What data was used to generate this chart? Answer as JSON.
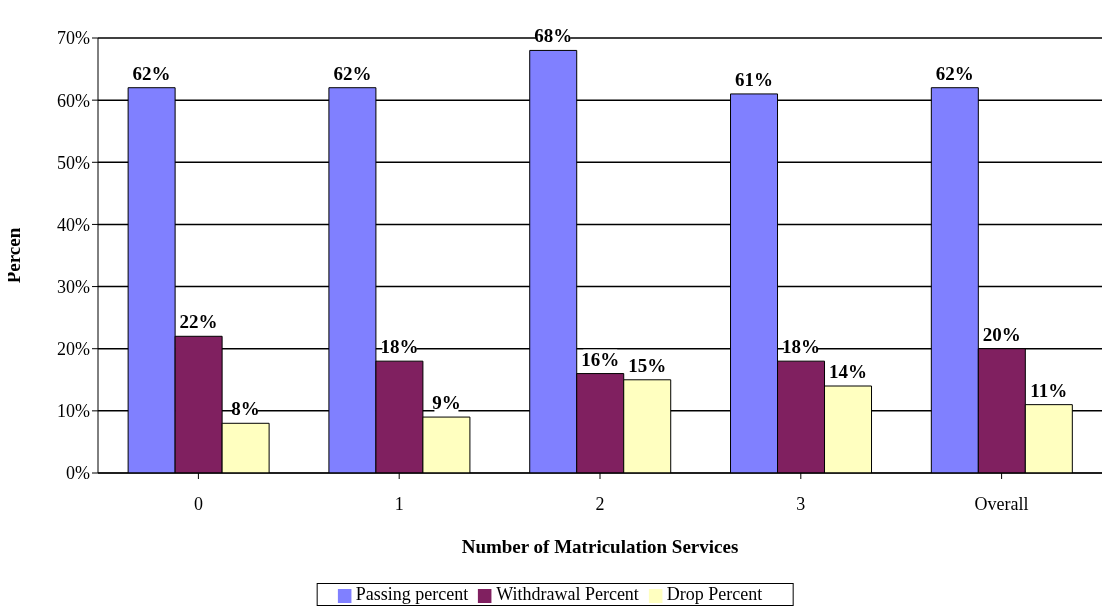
{
  "chart_data": {
    "type": "bar",
    "xlabel": "Number of Matriculation Services",
    "ylabel": "Percen",
    "categories": [
      "0",
      "1",
      "2",
      "3",
      "Overall"
    ],
    "series": [
      {
        "name": "Passing percent",
        "color": "#8080ff",
        "values": [
          62,
          62,
          68,
          61,
          62
        ],
        "value_labels": [
          "62%",
          "62%",
          "68%",
          "61%",
          "62%"
        ]
      },
      {
        "name": "Withdrawal Percent",
        "color": "#802060",
        "values": [
          22,
          18,
          16,
          18,
          20
        ],
        "value_labels": [
          "22%",
          "18%",
          "16%",
          "18%",
          "20%"
        ]
      },
      {
        "name": "Drop Percent",
        "color": "#ffffc0",
        "values": [
          8,
          9,
          15,
          14,
          11
        ],
        "value_labels": [
          "8%",
          "9%",
          "15%",
          "14%",
          "11%"
        ]
      }
    ],
    "ylim": [
      0,
      70
    ],
    "yticks": [
      {
        "value": 0,
        "label": "0%"
      },
      {
        "value": 10,
        "label": "10%"
      },
      {
        "value": 20,
        "label": "20%"
      },
      {
        "value": 30,
        "label": "30%"
      },
      {
        "value": 40,
        "label": "40%"
      },
      {
        "value": 50,
        "label": "50%"
      },
      {
        "value": 60,
        "label": "60%"
      },
      {
        "value": 70,
        "label": "70%"
      }
    ],
    "grid": "y",
    "legend": "bottom"
  }
}
